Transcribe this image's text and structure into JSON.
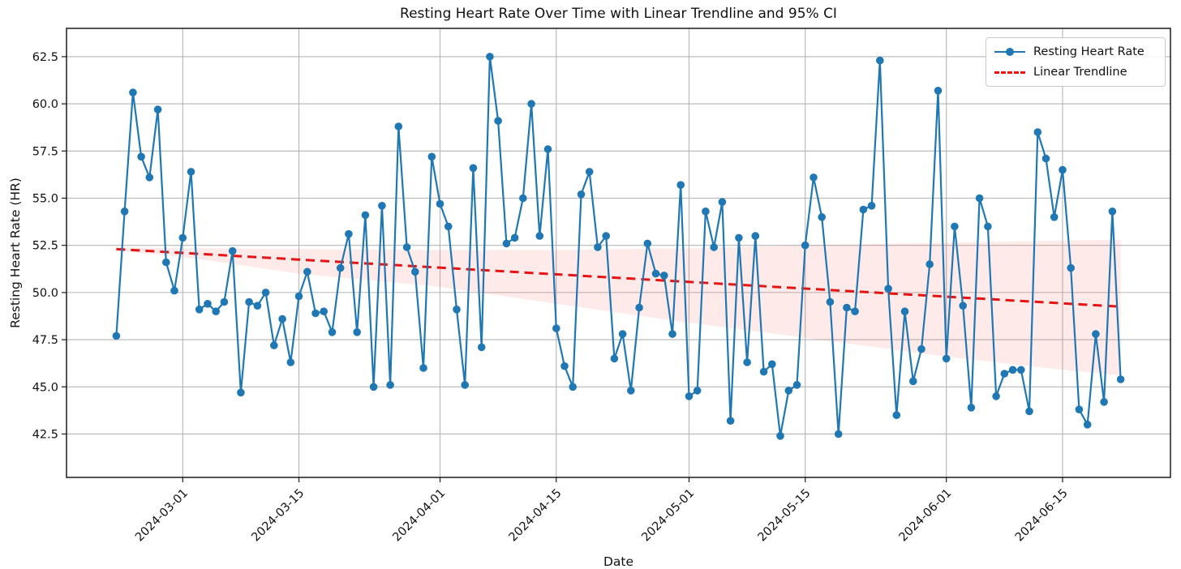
{
  "page": {
    "background": "#ffffff"
  },
  "colors": {
    "series_blue": "#1f77b4",
    "trend_red": "#e41414",
    "ci_fill": "#ff5050",
    "grid": "#b5b5b5",
    "spine": "#1b1b1b",
    "text": "#111111"
  },
  "chart_data": {
    "type": "line",
    "title": "Resting Heart Rate Over Time with Linear Trendline and 95% CI",
    "xlabel": "Date",
    "ylabel": "Resting Heart Rate (HR)",
    "grid": true,
    "xlim": [
      "2024-02-16",
      "2024-06-28"
    ],
    "ylim": [
      40.2,
      64.0
    ],
    "xticks": [
      {
        "date": "2024-03-01",
        "label": "2024-03-01"
      },
      {
        "date": "2024-03-15",
        "label": "2024-03-15"
      },
      {
        "date": "2024-04-01",
        "label": "2024-04-01"
      },
      {
        "date": "2024-04-15",
        "label": "2024-04-15"
      },
      {
        "date": "2024-05-01",
        "label": "2024-05-01"
      },
      {
        "date": "2024-05-15",
        "label": "2024-05-15"
      },
      {
        "date": "2024-06-01",
        "label": "2024-06-01"
      },
      {
        "date": "2024-06-15",
        "label": "2024-06-15"
      }
    ],
    "yticks": [
      {
        "value": 42.5,
        "label": "42.5"
      },
      {
        "value": 45.0,
        "label": "45.0"
      },
      {
        "value": 47.5,
        "label": "47.5"
      },
      {
        "value": 50.0,
        "label": "50.0"
      },
      {
        "value": 52.5,
        "label": "52.5"
      },
      {
        "value": 55.0,
        "label": "55.0"
      },
      {
        "value": 57.5,
        "label": "57.5"
      },
      {
        "value": 60.0,
        "label": "60.0"
      },
      {
        "value": 62.5,
        "label": "62.5"
      }
    ],
    "legend": {
      "position": "upper right",
      "items": [
        "Resting Heart Rate",
        "Linear Trendline"
      ]
    },
    "series": [
      {
        "name": "Resting Heart Rate",
        "color": "#1f77b4",
        "marker": "circle",
        "start_date": "2024-02-22",
        "frequency": "daily",
        "values": [
          47.7,
          54.3,
          60.6,
          57.2,
          56.1,
          59.7,
          51.6,
          50.1,
          52.9,
          56.4,
          49.1,
          49.4,
          49.0,
          49.5,
          52.2,
          44.7,
          49.5,
          49.3,
          50.0,
          47.2,
          48.6,
          46.3,
          49.8,
          51.1,
          48.9,
          49.0,
          47.9,
          51.3,
          53.1,
          47.9,
          54.1,
          45.0,
          54.6,
          45.1,
          58.8,
          52.4,
          51.1,
          46.0,
          57.2,
          54.7,
          53.5,
          49.1,
          45.1,
          56.6,
          47.1,
          62.5,
          59.1,
          52.6,
          52.9,
          55.0,
          60.0,
          53.0,
          57.6,
          48.1,
          46.1,
          45.0,
          55.2,
          56.4,
          52.4,
          53.0,
          46.5,
          47.8,
          44.8,
          49.2,
          52.6,
          51.0,
          50.9,
          47.8,
          55.7,
          44.5,
          44.8,
          54.3,
          52.4,
          54.8,
          43.2,
          52.9,
          46.3,
          53.0,
          45.8,
          46.2,
          42.4,
          44.8,
          45.1,
          52.5,
          56.1,
          54.0,
          49.5,
          42.5,
          49.2,
          49.0,
          54.4,
          54.6,
          62.3,
          50.2,
          43.5,
          49.0,
          45.3,
          47.0,
          51.5,
          60.7,
          46.5,
          53.5,
          49.3,
          43.9,
          55.0,
          53.5,
          44.5,
          45.7,
          45.9,
          45.9,
          43.7,
          58.5,
          57.1,
          54.0,
          56.5,
          51.3,
          43.8,
          43.0,
          47.8,
          44.2,
          54.3,
          45.4
        ]
      },
      {
        "name": "Linear Trendline",
        "color": "#e41414",
        "style": "dashed",
        "points": [
          {
            "date": "2024-02-22",
            "value": 52.3
          },
          {
            "date": "2024-06-22",
            "value": 49.25
          }
        ]
      }
    ],
    "confidence_band": {
      "label": "95% CI",
      "fill": "#ff5050",
      "opacity": 0.12,
      "points": [
        [
          "2024-02-22",
          52.4,
          52.2
        ],
        [
          "2024-03-01",
          52.35,
          51.9
        ],
        [
          "2024-03-15",
          52.3,
          51.0
        ],
        [
          "2024-04-01",
          52.25,
          50.3
        ],
        [
          "2024-04-15",
          52.25,
          49.4
        ],
        [
          "2024-05-01",
          52.35,
          48.4
        ],
        [
          "2024-05-15",
          52.5,
          47.6
        ],
        [
          "2024-06-01",
          52.65,
          46.6
        ],
        [
          "2024-06-15",
          52.75,
          45.9
        ],
        [
          "2024-06-22",
          52.8,
          45.6
        ]
      ]
    }
  }
}
